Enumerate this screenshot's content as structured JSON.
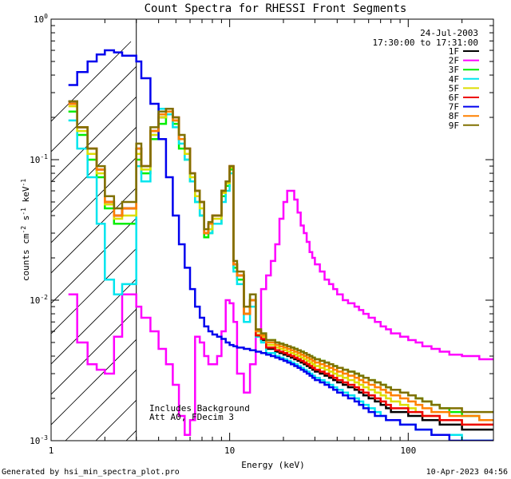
{
  "chart_data": {
    "type": "line",
    "title": "Count Spectra for RHESSI Front Segments",
    "xlabel": "Energy (keV)",
    "ylabel": "counts cm^-2 s^-1 keV^-1",
    "ylabel_parts": {
      "base": "counts cm",
      "exp1": "-2",
      "mid": " s",
      "exp2": "-1",
      "mid2": " keV",
      "exp3": "-1"
    },
    "x_scale": "log",
    "y_scale": "log",
    "xlim": [
      1.0,
      300.0
    ],
    "ylim": [
      0.001,
      1.0
    ],
    "x_ticks": [
      {
        "value": 1,
        "label": "1"
      },
      {
        "value": 10,
        "label": "10"
      },
      {
        "value": 100,
        "label": "100"
      }
    ],
    "y_ticks": [
      {
        "value": 0.001,
        "base": "10",
        "exp": "-3"
      },
      {
        "value": 0.01,
        "base": "10",
        "exp": "-2"
      },
      {
        "value": 0.1,
        "base": "10",
        "exp": "-1"
      },
      {
        "value": 1,
        "base": "10",
        "exp": "0"
      }
    ],
    "date": "24-Jul-2003",
    "time_range": "17:30:00 to 17:31:00",
    "hatched_region_xmax": 3.0,
    "annotations": [
      "Includes Background",
      "Att A0, FDecim 3"
    ],
    "legend_position": "top-right",
    "series": [
      {
        "name": "1F",
        "color": "#000000",
        "values": [
          0.26,
          0.17,
          0.12,
          0.085,
          0.05,
          0.04,
          0.045,
          0.12,
          0.09,
          0.16,
          0.2,
          0.22,
          0.19,
          0.14,
          0.12,
          0.08,
          0.06,
          0.05,
          0.03,
          0.035,
          0.04,
          0.04,
          0.06,
          0.07,
          0.09,
          0.018,
          0.015,
          0.008,
          0.01,
          0.0055,
          0.0052,
          0.0045,
          0.0045,
          0.0043,
          0.0042,
          0.0041,
          0.004,
          0.0039,
          0.0038,
          0.0037,
          0.0036,
          0.0035,
          0.0034,
          0.0033,
          0.0032,
          0.0031,
          0.003,
          0.0029,
          0.0028,
          0.0027,
          0.0026,
          0.0025,
          0.0024,
          0.0023,
          0.0022,
          0.0021,
          0.002,
          0.0019,
          0.0018,
          0.0017,
          0.0016,
          0.0016,
          0.0015,
          0.0015,
          0.0014,
          0.0014,
          0.0013,
          0.0013,
          0.0012,
          0.0012
        ]
      },
      {
        "name": "2F",
        "color": "#ff00ff",
        "values": [
          0.011,
          0.005,
          0.0035,
          0.0032,
          0.003,
          0.0055,
          0.011,
          0.009,
          0.0075,
          0.006,
          0.0045,
          0.0035,
          0.0025,
          0.0015,
          0.0011,
          0.0014,
          0.0055,
          0.005,
          0.004,
          0.0035,
          0.0035,
          0.004,
          0.006,
          0.01,
          0.0095,
          0.007,
          0.003,
          0.0022,
          0.0035,
          0.006,
          0.012,
          0.015,
          0.019,
          0.025,
          0.038,
          0.05,
          0.06,
          0.06,
          0.052,
          0.042,
          0.034,
          0.03,
          0.026,
          0.022,
          0.02,
          0.018,
          0.016,
          0.014,
          0.013,
          0.012,
          0.011,
          0.01,
          0.0095,
          0.009,
          0.0085,
          0.008,
          0.0075,
          0.007,
          0.0065,
          0.0062,
          0.0058,
          0.0055,
          0.0052,
          0.005,
          0.0047,
          0.0045,
          0.0043,
          0.0041,
          0.004,
          0.0038
        ]
      },
      {
        "name": "3F",
        "color": "#00ee00",
        "values": [
          0.22,
          0.15,
          0.1,
          0.075,
          0.045,
          0.035,
          0.035,
          0.1,
          0.08,
          0.14,
          0.18,
          0.21,
          0.18,
          0.12,
          0.1,
          0.07,
          0.05,
          0.04,
          0.028,
          0.03,
          0.035,
          0.035,
          0.055,
          0.065,
          0.085,
          0.017,
          0.014,
          0.008,
          0.011,
          0.006,
          0.0058,
          0.0052,
          0.0052,
          0.005,
          0.0049,
          0.0048,
          0.0047,
          0.0046,
          0.0045,
          0.0044,
          0.0043,
          0.0042,
          0.0041,
          0.004,
          0.0039,
          0.0038,
          0.0037,
          0.0036,
          0.0035,
          0.0034,
          0.0033,
          0.0032,
          0.0031,
          0.003,
          0.0029,
          0.0028,
          0.0027,
          0.0026,
          0.0025,
          0.0024,
          0.0023,
          0.0022,
          0.0021,
          0.002,
          0.0019,
          0.0018,
          0.0017,
          0.0016,
          0.0015,
          0.0014
        ]
      },
      {
        "name": "4F",
        "color": "#00e5ee",
        "values": [
          0.19,
          0.12,
          0.075,
          0.035,
          0.014,
          0.011,
          0.013,
          0.09,
          0.07,
          0.15,
          0.23,
          0.21,
          0.17,
          0.13,
          0.1,
          0.07,
          0.05,
          0.04,
          0.03,
          0.03,
          0.035,
          0.035,
          0.05,
          0.06,
          0.08,
          0.016,
          0.013,
          0.007,
          0.009,
          0.0055,
          0.005,
          0.0042,
          0.0042,
          0.004,
          0.0039,
          0.0038,
          0.0037,
          0.0036,
          0.0035,
          0.0034,
          0.0033,
          0.0032,
          0.0031,
          0.003,
          0.0029,
          0.0028,
          0.0027,
          0.0026,
          0.0025,
          0.0024,
          0.0023,
          0.0022,
          0.0021,
          0.002,
          0.0019,
          0.0018,
          0.0017,
          0.0016,
          0.0015,
          0.0014,
          0.0014,
          0.0013,
          0.0013,
          0.0012,
          0.0012,
          0.0011,
          0.0011,
          0.0011,
          0.001,
          0.001
        ]
      },
      {
        "name": "5F",
        "color": "#dddd00",
        "values": [
          0.24,
          0.16,
          0.11,
          0.08,
          0.048,
          0.038,
          0.04,
          0.11,
          0.085,
          0.15,
          0.2,
          0.22,
          0.19,
          0.14,
          0.11,
          0.075,
          0.055,
          0.045,
          0.03,
          0.032,
          0.038,
          0.038,
          0.058,
          0.068,
          0.088,
          0.018,
          0.015,
          0.008,
          0.01,
          0.0057,
          0.0055,
          0.0048,
          0.0048,
          0.0046,
          0.0045,
          0.0044,
          0.0043,
          0.0042,
          0.0041,
          0.004,
          0.0039,
          0.0038,
          0.0037,
          0.0036,
          0.0035,
          0.0034,
          0.0033,
          0.0032,
          0.0031,
          0.003,
          0.0029,
          0.0028,
          0.0027,
          0.0026,
          0.0025,
          0.0024,
          0.0023,
          0.0022,
          0.0021,
          0.002,
          0.0019,
          0.0018,
          0.0017,
          0.0016,
          0.0015,
          0.0015,
          0.0014,
          0.0014,
          0.0013,
          0.0013
        ]
      },
      {
        "name": "6F",
        "color": "#ee0000",
        "values": [
          0.25,
          0.17,
          0.12,
          0.085,
          0.05,
          0.04,
          0.045,
          0.12,
          0.09,
          0.16,
          0.21,
          0.23,
          0.2,
          0.14,
          0.12,
          0.08,
          0.06,
          0.05,
          0.03,
          0.035,
          0.04,
          0.04,
          0.06,
          0.07,
          0.09,
          0.018,
          0.015,
          0.008,
          0.01,
          0.0056,
          0.0053,
          0.0046,
          0.0046,
          0.0044,
          0.0043,
          0.0042,
          0.0041,
          0.004,
          0.0039,
          0.0038,
          0.0037,
          0.0036,
          0.0035,
          0.0034,
          0.0033,
          0.0032,
          0.0031,
          0.003,
          0.0029,
          0.0028,
          0.0027,
          0.0026,
          0.0025,
          0.0024,
          0.0023,
          0.0022,
          0.0021,
          0.002,
          0.0019,
          0.0018,
          0.0017,
          0.0017,
          0.0016,
          0.0016,
          0.0015,
          0.0015,
          0.0014,
          0.0014,
          0.0013,
          0.0013
        ]
      },
      {
        "name": "7F",
        "color": "#0000ee",
        "values": [
          0.34,
          0.42,
          0.5,
          0.56,
          0.6,
          0.58,
          0.55,
          0.5,
          0.38,
          0.25,
          0.14,
          0.075,
          0.04,
          0.025,
          0.017,
          0.012,
          0.009,
          0.0075,
          0.0065,
          0.006,
          0.0057,
          0.0055,
          0.0053,
          0.005,
          0.0048,
          0.0047,
          0.0046,
          0.0045,
          0.0044,
          0.0043,
          0.0042,
          0.0041,
          0.004,
          0.0039,
          0.0038,
          0.0037,
          0.0036,
          0.0035,
          0.0034,
          0.0033,
          0.0032,
          0.0031,
          0.003,
          0.0029,
          0.0028,
          0.0027,
          0.0026,
          0.0025,
          0.0024,
          0.0023,
          0.0022,
          0.0021,
          0.002,
          0.0019,
          0.0018,
          0.0017,
          0.0016,
          0.0015,
          0.0015,
          0.0014,
          0.0014,
          0.0013,
          0.0013,
          0.0012,
          0.0012,
          0.0011,
          0.0011,
          0.001,
          0.001,
          0.001
        ]
      },
      {
        "name": "8F",
        "color": "#ff8000",
        "values": [
          0.25,
          0.17,
          0.12,
          0.085,
          0.05,
          0.04,
          0.045,
          0.12,
          0.09,
          0.16,
          0.21,
          0.22,
          0.19,
          0.14,
          0.12,
          0.08,
          0.06,
          0.05,
          0.03,
          0.035,
          0.04,
          0.04,
          0.06,
          0.07,
          0.09,
          0.018,
          0.015,
          0.008,
          0.01,
          0.006,
          0.0056,
          0.005,
          0.005,
          0.0048,
          0.0047,
          0.0046,
          0.0045,
          0.0044,
          0.0043,
          0.0042,
          0.0041,
          0.004,
          0.0039,
          0.0038,
          0.0037,
          0.0036,
          0.0035,
          0.0034,
          0.0033,
          0.0032,
          0.0031,
          0.003,
          0.0029,
          0.0028,
          0.0027,
          0.0026,
          0.0025,
          0.0024,
          0.0023,
          0.0022,
          0.0021,
          0.002,
          0.0019,
          0.0018,
          0.0017,
          0.0016,
          0.0016,
          0.0015,
          0.0015,
          0.0014
        ]
      },
      {
        "name": "9F",
        "color": "#807000",
        "values": [
          0.26,
          0.17,
          0.12,
          0.09,
          0.055,
          0.045,
          0.05,
          0.13,
          0.09,
          0.17,
          0.22,
          0.23,
          0.2,
          0.15,
          0.12,
          0.08,
          0.06,
          0.05,
          0.032,
          0.036,
          0.04,
          0.04,
          0.06,
          0.07,
          0.09,
          0.019,
          0.016,
          0.009,
          0.011,
          0.0062,
          0.0058,
          0.0052,
          0.0052,
          0.005,
          0.0049,
          0.0048,
          0.0047,
          0.0046,
          0.0045,
          0.0044,
          0.0043,
          0.0042,
          0.0041,
          0.004,
          0.0039,
          0.0038,
          0.0037,
          0.0036,
          0.0035,
          0.0034,
          0.0033,
          0.0032,
          0.0031,
          0.003,
          0.0029,
          0.0028,
          0.0027,
          0.0026,
          0.0025,
          0.0024,
          0.0023,
          0.0022,
          0.0021,
          0.002,
          0.0019,
          0.0018,
          0.0017,
          0.0017,
          0.0016,
          0.0016
        ]
      }
    ],
    "energy_edges": [
      1.25,
      1.4,
      1.6,
      1.8,
      2.0,
      2.25,
      2.5,
      3.0,
      3.2,
      3.6,
      4.0,
      4.4,
      4.8,
      5.2,
      5.6,
      6.0,
      6.4,
      6.8,
      7.2,
      7.6,
      8.0,
      8.5,
      9.0,
      9.5,
      10.0,
      10.5,
      11.0,
      12.0,
      13.0,
      14.0,
      15.0,
      16.0,
      17.0,
      18.0,
      19.0,
      20.0,
      21.0,
      22.0,
      23.0,
      24.0,
      25.0,
      26.0,
      27.0,
      28.0,
      29.0,
      30.0,
      32.0,
      34.0,
      36.0,
      38.0,
      40.0,
      43.0,
      46.0,
      50.0,
      53.0,
      56.0,
      60.0,
      65.0,
      70.0,
      75.0,
      80.0,
      90.0,
      100.0,
      110.0,
      120.0,
      135.0,
      150.0,
      170.0,
      200.0,
      250.0,
      300.0
    ]
  },
  "footer": {
    "generated_by": "Generated by hsi_min_spectra_plot.pro",
    "timestamp": "10-Apr-2023 04:56"
  }
}
